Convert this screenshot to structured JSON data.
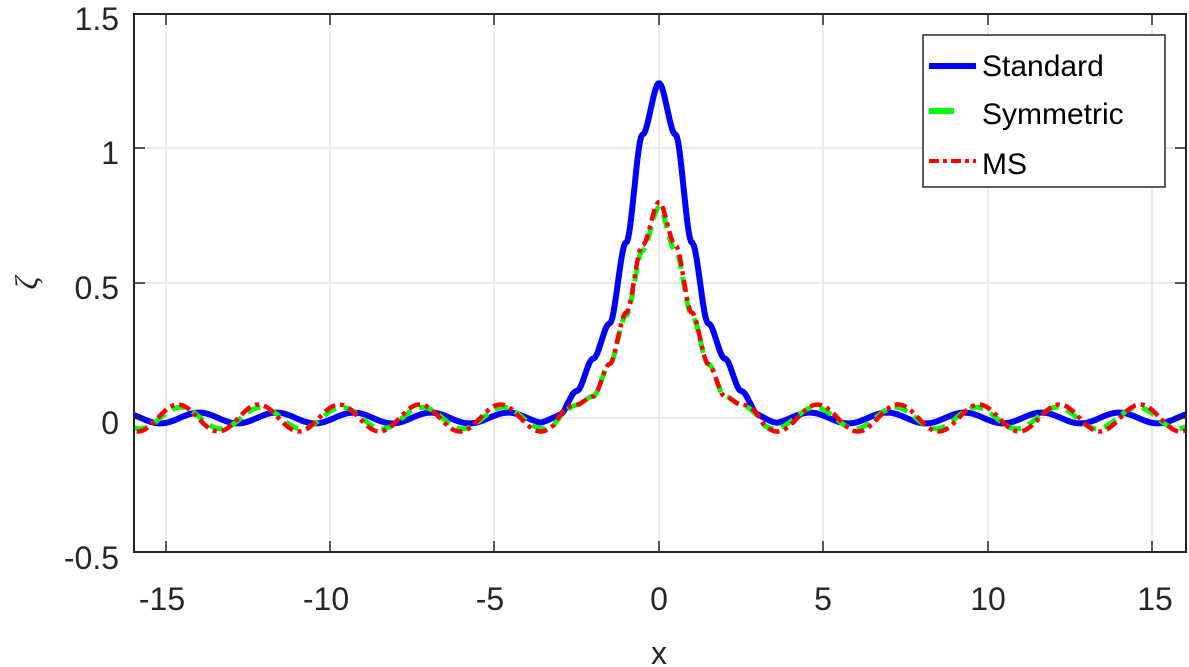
{
  "chart_data": {
    "type": "line",
    "title": "",
    "xlabel": "x",
    "ylabel": "ζ",
    "xlim": [
      -16,
      16
    ],
    "ylim": [
      -0.5,
      1.5
    ],
    "grid": true,
    "legend_position": "upper right",
    "xticks": [
      -15,
      -10,
      -5,
      0,
      5,
      10,
      15
    ],
    "xtick_labels": [
      "-15",
      "-10",
      "-5",
      "0",
      "5",
      "10",
      "15"
    ],
    "yticks": [
      -0.5,
      0,
      0.5,
      1,
      1.5
    ],
    "ytick_labels": [
      "-0.5",
      "0",
      "0.5",
      "1",
      "1.5"
    ],
    "series": [
      {
        "name": "Standard",
        "color": "#0000ff",
        "style": "solid",
        "description": "Solitary peak at x=0 (~1.24) with small oscillatory tails of amplitude ~0.02 (wavelength ~2.35)",
        "peak": {
          "x": 0,
          "y": 1.24
        },
        "tail_amplitude": 0.02,
        "tail_wavelength": 2.35,
        "x": [
          -16,
          -4,
          -3,
          -2.5,
          -2,
          -1.5,
          -1,
          -0.5,
          0,
          0.5,
          1,
          1.5,
          2,
          2.5,
          3,
          4,
          16
        ],
        "y": [
          -0.02,
          0.03,
          0.02,
          0.1,
          0.22,
          0.35,
          0.65,
          1.05,
          1.24,
          1.05,
          0.65,
          0.35,
          0.22,
          0.1,
          0.02,
          0.0,
          -0.02
        ]
      },
      {
        "name": "Symmetric",
        "color": "#00ff00",
        "style": "dashed",
        "description": "Peak at x=0 (~0.78) with oscillatory tails of amplitude ~0.04",
        "peak": {
          "x": 0,
          "y": 0.78
        },
        "tail_amplitude": 0.04,
        "tail_wavelength": 2.45,
        "x": [
          -16,
          -3,
          -2.5,
          -2,
          -1.5,
          -1,
          -0.5,
          0,
          0.5,
          1,
          1.5,
          2,
          2.5,
          3,
          16
        ],
        "y": [
          0.04,
          0.05,
          0.05,
          0.08,
          0.2,
          0.38,
          0.62,
          0.78,
          0.62,
          0.38,
          0.2,
          0.08,
          0.05,
          0.05,
          0.04
        ]
      },
      {
        "name": "MS",
        "color": "#ff0000",
        "style": "dash-dot",
        "description": "Peak at x=0 (~0.80) with oscillatory tails of amplitude ~0.05, nearly coincident with Symmetric",
        "peak": {
          "x": 0,
          "y": 0.8
        },
        "tail_amplitude": 0.05,
        "tail_wavelength": 2.45,
        "x": [
          -16,
          -3,
          -2.5,
          -2,
          -1.5,
          -1,
          -0.5,
          0,
          0.5,
          1,
          1.5,
          2,
          2.5,
          3,
          16
        ],
        "y": [
          0.05,
          0.05,
          0.05,
          0.08,
          0.2,
          0.39,
          0.64,
          0.8,
          0.64,
          0.39,
          0.2,
          0.08,
          0.05,
          0.05,
          0.05
        ]
      }
    ]
  },
  "legend": {
    "items": [
      {
        "label": "Standard",
        "color": "#0000ff"
      },
      {
        "label": "Symmetric",
        "color": "#00ff00"
      },
      {
        "label": "MS",
        "color": "#ff0000"
      }
    ]
  },
  "axes": {
    "xlabel": "x",
    "ylabel": "ζ",
    "xtick_labels": [
      "-15",
      "-10",
      "-5",
      "0",
      "5",
      "10",
      "15"
    ],
    "ytick_labels": [
      "-0.5",
      "0",
      "0.5",
      "1",
      "1.5"
    ]
  }
}
